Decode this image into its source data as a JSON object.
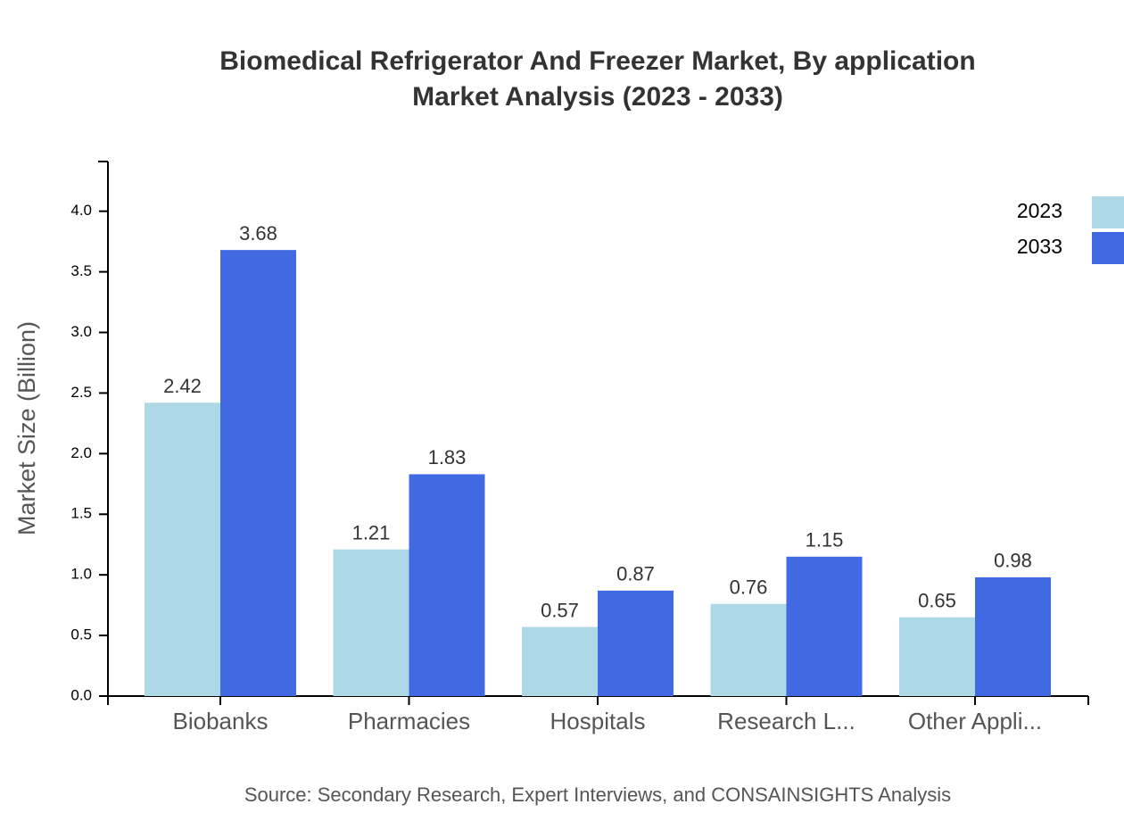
{
  "chart_data": {
    "type": "bar",
    "title": "Biomedical Refrigerator And Freezer Market, By application",
    "subtitle": "Market Analysis (2023 - 2033)",
    "y_label": "Market Size (Billion)",
    "source": "Source: Secondary Research, Expert Interviews, and CONSAINSIGHTS Analysis",
    "categories": [
      "Biobanks",
      "Pharmacies",
      "Hospitals",
      "Research L...",
      "Other Appli..."
    ],
    "series": [
      {
        "name": "2023",
        "color": "#add8e6",
        "values": [
          2.42,
          1.21,
          0.57,
          0.76,
          0.65
        ]
      },
      {
        "name": "2033",
        "color": "#4169e1",
        "values": [
          3.68,
          1.83,
          0.87,
          1.15,
          0.98
        ]
      }
    ],
    "ylim": [
      0,
      4.41
    ],
    "yticks": [
      {
        "value": 0,
        "label": "0.0"
      },
      0.5,
      {
        "value": 1,
        "label": "1.0"
      },
      1.5,
      {
        "value": 2,
        "label": "2.0"
      },
      2.5,
      {
        "value": 3,
        "label": "3.0"
      },
      3.5,
      {
        "value": 4,
        "label": "4.0"
      }
    ],
    "grid": false
  }
}
